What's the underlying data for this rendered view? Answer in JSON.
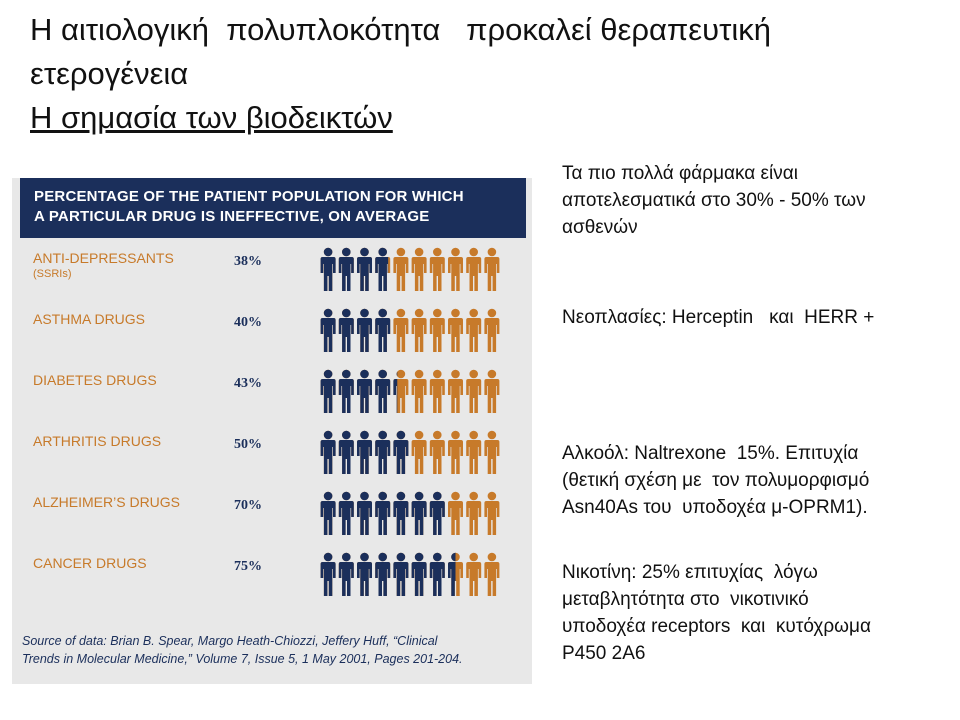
{
  "slide": {
    "title_lines": [
      "Η αιτιολογική  πολυπλοκότητα   προκαλεί θεραπευτική",
      "ετερογένεια"
    ],
    "subtitle": "Η σημασία των βιοδεικτών"
  },
  "chart_data": {
    "type": "pictogram",
    "title_lines": [
      "PERCENTAGE OF THE PATIENT POPULATION FOR WHICH",
      "A PARTICULAR DRUG IS INEFFECTIVE, ON AVERAGE"
    ],
    "icons_per_row": 10,
    "rows": [
      {
        "label": "ANTI-DEPRESSANTS",
        "sublabel": "(SSRIs)",
        "value": 38,
        "value_label": "38%"
      },
      {
        "label": "ASTHMA DRUGS",
        "sublabel": "",
        "value": 40,
        "value_label": "40%"
      },
      {
        "label": "DIABETES DRUGS",
        "sublabel": "",
        "value": 43,
        "value_label": "43%"
      },
      {
        "label": "ARTHRITIS DRUGS",
        "sublabel": "",
        "value": 50,
        "value_label": "50%"
      },
      {
        "label": "ALZHEIMER’S DRUGS",
        "sublabel": "",
        "value": 70,
        "value_label": "70%"
      },
      {
        "label": "CANCER DRUGS",
        "sublabel": "",
        "value": 75,
        "value_label": "75%"
      }
    ],
    "colors": {
      "ineffective": "#1b2f5b",
      "effective": "#c77a2a",
      "header_bg": "#1b2f5b",
      "panel_bg": "#e8e8e8"
    },
    "source_lines": [
      "Source of data: Brian B. Spear, Margo Heath-Chiozzi, Jeffery Huff, “Clinical",
      "Trends in Molecular Medicine,” Volume 7, Issue 5, 1 May 2001, Pages 201-204."
    ]
  },
  "notes": [
    {
      "lines": [
        "Τα πιο πολλά φάρμακα είναι",
        "αποτελεσματικά στο 30% - 50% των",
        "ασθενών"
      ]
    },
    {
      "lines": [
        "Νεοπλασίες: Herceptin   και  HERR +"
      ]
    },
    {
      "lines": [
        "Αλκοόλ: Naltrexone  15%. Επιτυχία",
        "(θετική σχέση με  τον πολυμορφισμό",
        "Asn40As του  υποδοχέα μ-OPRM1)."
      ]
    },
    {
      "lines": [
        "Νικοτίνη: 25% επιτυχίας  λόγω",
        "μεταβλητότητα στο  νικοτινικό",
        "υποδοχέα receptors  και  κυτόχρωμα",
        "P450 2A6"
      ]
    }
  ]
}
